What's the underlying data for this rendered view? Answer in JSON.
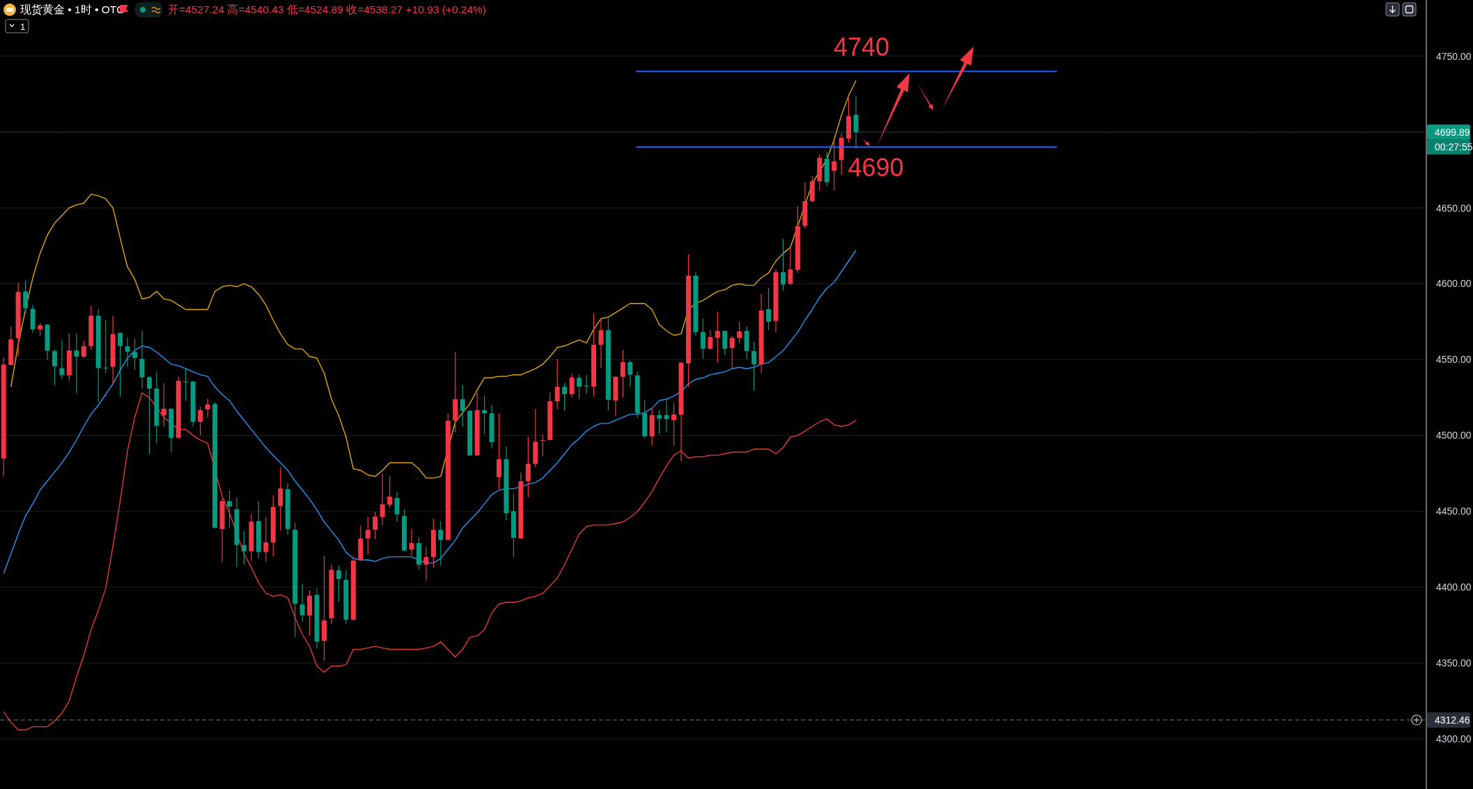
{
  "chart_data": {
    "type": "candlestick",
    "title": "现货黄金 • 1时 • OTC",
    "subtitle": "开=4527.24 高=4540.43 低=4524.89 收=4538.27 +10.93 (+0.24%)",
    "categories": [
      null,
      null,
      null,
      null,
      null,
      null,
      null,
      null,
      null,
      null,
      null,
      null,
      null,
      null,
      null,
      null,
      null,
      null,
      null,
      null,
      null,
      null,
      null,
      null,
      null,
      null,
      null,
      null,
      null,
      null,
      null,
      null,
      null,
      null,
      null,
      null,
      null,
      null,
      null,
      null,
      null,
      null,
      null,
      null,
      null,
      null,
      null,
      null,
      null,
      null,
      null,
      null,
      null,
      null,
      null,
      null,
      null,
      null,
      null,
      null,
      null,
      null,
      null,
      null,
      null,
      null,
      null,
      null,
      null,
      null,
      null,
      null,
      null,
      null,
      null,
      null,
      null,
      null,
      null,
      null,
      null,
      null,
      null,
      null,
      null,
      null,
      null,
      null,
      null,
      null,
      null,
      null,
      null,
      null,
      null,
      null,
      null,
      null,
      null,
      null,
      null,
      null,
      null,
      null,
      null,
      null,
      null,
      null,
      null,
      null,
      null,
      null,
      null,
      null,
      null,
      null,
      null,
      null
    ],
    "ohlc": [
      [
        4484.8,
        4551.4,
        4472.8,
        4546.7
      ],
      [
        4546.5,
        4571.9,
        4546.2,
        4563.3
      ],
      [
        4564.0,
        4600.9,
        4552.3,
        4594.6
      ],
      [
        4594.9,
        4602.3,
        4580.4,
        4583.9
      ],
      [
        4583.5,
        4586.1,
        4567.5,
        4570.0
      ],
      [
        4570.0,
        4574.2,
        4565.8,
        4572.5
      ],
      [
        4573.0,
        4573.3,
        4550.0,
        4555.8
      ],
      [
        4555.6,
        4556.7,
        4533.3,
        4545.6
      ],
      [
        4544.4,
        4563.2,
        4537.4,
        4539.8
      ],
      [
        4539.7,
        4567.2,
        4536.1,
        4556.0
      ],
      [
        4556.0,
        4567.2,
        4527.7,
        4551.9
      ],
      [
        4551.9,
        4562.3,
        4551.1,
        4558.8
      ],
      [
        4559.0,
        4585.6,
        4556.3,
        4578.9
      ],
      [
        4578.9,
        4583.5,
        4522.0,
        4544.4
      ],
      [
        4544.7,
        4576.0,
        4540.9,
        4544.4
      ],
      [
        4545.3,
        4578.9,
        4533.3,
        4566.8
      ],
      [
        4567.5,
        4568.1,
        4525.6,
        4559.0
      ],
      [
        4558.8,
        4564.6,
        4545.3,
        4555.3
      ],
      [
        4555.1,
        4563.7,
        4543.2,
        4551.1
      ],
      [
        4550.5,
        4569.0,
        4530.9,
        4538.3
      ],
      [
        4538.3,
        4539.1,
        4487.6,
        4530.9
      ],
      [
        4530.9,
        4542.1,
        4494.9,
        4506.3
      ],
      [
        4513.2,
        4534.4,
        4505.8,
        4517.6
      ],
      [
        4517.6,
        4518.1,
        4489.1,
        4498.4
      ],
      [
        4498.4,
        4538.8,
        4498.4,
        4536.0
      ],
      [
        4535.6,
        4543.9,
        4522.8,
        4535.1
      ],
      [
        4535.6,
        4536.0,
        4505.8,
        4509.0
      ],
      [
        4509.0,
        4519.0,
        4500.2,
        4516.7
      ],
      [
        4517.2,
        4524.2,
        4511.9,
        4520.4
      ],
      [
        4520.7,
        4522.0,
        4438.8,
        4439.2
      ],
      [
        4438.3,
        4458.4,
        4416.4,
        4456.7
      ],
      [
        4456.7,
        4463.7,
        4439.2,
        4453.2
      ],
      [
        4451.4,
        4459.3,
        4413.2,
        4427.8
      ],
      [
        4427.8,
        4436.9,
        4415.0,
        4423.7
      ],
      [
        4423.7,
        4448.3,
        4417.2,
        4443.2
      ],
      [
        4443.5,
        4456.7,
        4419.0,
        4423.2
      ],
      [
        4423.2,
        4446.2,
        4416.9,
        4429.5
      ],
      [
        4429.5,
        4460.6,
        4420.4,
        4452.8
      ],
      [
        4453.5,
        4479.1,
        4437.4,
        4465.1
      ],
      [
        4464.6,
        4468.6,
        4434.2,
        4438.3
      ],
      [
        4437.9,
        4442.7,
        4367.2,
        4389.2
      ],
      [
        4388.6,
        4402.3,
        4377.4,
        4381.6
      ],
      [
        4381.3,
        4397.9,
        4368.1,
        4394.4
      ],
      [
        4395.0,
        4399.2,
        4359.7,
        4364.1
      ],
      [
        4364.6,
        4420.7,
        4351.5,
        4378.1
      ],
      [
        4379.5,
        4414.9,
        4376.0,
        4411.4
      ],
      [
        4411.1,
        4414.2,
        4390.4,
        4405.5
      ],
      [
        4404.9,
        4411.1,
        4375.7,
        4378.6
      ],
      [
        4378.6,
        4420.2,
        4378.1,
        4417.6
      ],
      [
        4417.8,
        4440.6,
        4417.2,
        4432.1
      ],
      [
        4432.1,
        4446.5,
        4421.6,
        4437.8
      ],
      [
        4437.9,
        4449.7,
        4431.6,
        4446.5
      ],
      [
        4446.2,
        4474.8,
        4440.9,
        4454.6
      ],
      [
        4454.4,
        4472.8,
        4452.3,
        4459.7
      ],
      [
        4458.8,
        4462.8,
        4443.0,
        4448.0
      ],
      [
        4446.9,
        4451.1,
        4423.7,
        4424.1
      ],
      [
        4424.8,
        4438.3,
        4420.7,
        4429.0
      ],
      [
        4429.0,
        4433.0,
        4411.4,
        4414.9
      ],
      [
        4414.9,
        4426.5,
        4404.4,
        4419.9
      ],
      [
        4419.9,
        4445.1,
        4412.8,
        4437.8
      ],
      [
        4437.8,
        4443.5,
        4414.1,
        4431.1
      ],
      [
        4431.1,
        4514.6,
        4430.7,
        4509.7
      ],
      [
        4509.8,
        4554.9,
        4502.0,
        4523.9
      ],
      [
        4523.9,
        4533.3,
        4505.8,
        4516.3
      ],
      [
        4516.3,
        4516.7,
        4486.5,
        4486.9
      ],
      [
        4486.9,
        4528.3,
        4486.5,
        4516.7
      ],
      [
        4516.7,
        4526.3,
        4501.1,
        4514.6
      ],
      [
        4514.6,
        4520.2,
        4491.8,
        4495.6
      ],
      [
        4472.5,
        4514.6,
        4464.6,
        4484.4
      ],
      [
        4484.4,
        4492.7,
        4444.1,
        4448.8
      ],
      [
        4450.0,
        4461.6,
        4419.9,
        4432.5
      ],
      [
        4432.1,
        4475.6,
        4431.8,
        4469.8
      ],
      [
        4469.8,
        4499.1,
        4459.3,
        4481.3
      ],
      [
        4481.3,
        4517.6,
        4479.1,
        4495.8
      ],
      [
        4496.5,
        4500.5,
        4486.5,
        4497.0
      ],
      [
        4497.0,
        4528.3,
        4497.0,
        4522.5
      ],
      [
        4522.5,
        4550.5,
        4517.2,
        4532.1
      ],
      [
        4532.1,
        4534.7,
        4516.3,
        4527.2
      ],
      [
        4527.24,
        4540.43,
        4524.89,
        4538.27
      ],
      [
        4538.0,
        4540.3,
        4524.0,
        4532.2
      ],
      [
        4532.8,
        4539.9,
        4527.6,
        4532.4
      ],
      [
        4532.2,
        4580.4,
        4525.8,
        4559.8
      ],
      [
        4559.8,
        4577.3,
        4544.5,
        4569.4
      ],
      [
        4569.4,
        4578.6,
        4516.6,
        4523.5
      ],
      [
        4523.1,
        4539.1,
        4512.7,
        4538.7
      ],
      [
        4538.7,
        4556.4,
        4525.0,
        4548.3
      ],
      [
        4548.3,
        4549.5,
        4532.2,
        4540.0
      ],
      [
        4539.6,
        4542.3,
        4511.7,
        4514.8
      ],
      [
        4514.8,
        4523.1,
        4498.6,
        4499.4
      ],
      [
        4499.4,
        4518.2,
        4493.4,
        4513.4
      ],
      [
        4513.4,
        4516.6,
        4501.0,
        4511.1
      ],
      [
        4513.4,
        4524.0,
        4502.1,
        4510.8
      ],
      [
        4510.2,
        4521.2,
        4493.0,
        4513.9
      ],
      [
        4513.6,
        4548.3,
        4483.0,
        4548.0
      ],
      [
        4547.5,
        4619.4,
        4532.2,
        4605.3
      ],
      [
        4605.3,
        4607.6,
        4565.9,
        4568.2
      ],
      [
        4568.2,
        4577.0,
        4550.6,
        4557.2
      ],
      [
        4557.2,
        4569.4,
        4556.9,
        4564.8
      ],
      [
        4564.3,
        4581.6,
        4548.0,
        4568.9
      ],
      [
        4568.9,
        4569.2,
        4553.3,
        4557.2
      ],
      [
        4557.6,
        4565.6,
        4544.2,
        4564.3
      ],
      [
        4564.3,
        4575.2,
        4560.7,
        4568.6
      ],
      [
        4568.9,
        4572.0,
        4550.3,
        4555.6
      ],
      [
        4555.6,
        4561.7,
        4529.6,
        4546.9
      ],
      [
        4546.9,
        4593.4,
        4541.1,
        4582.4
      ],
      [
        4583.2,
        4597.4,
        4569.4,
        4575.0
      ],
      [
        4575.5,
        4609.6,
        4568.2,
        4607.6
      ],
      [
        4607.6,
        4629.8,
        4595.4,
        4599.5
      ],
      [
        4600.0,
        4624.4,
        4599.2,
        4609.5
      ],
      [
        4609.1,
        4651.2,
        4607.0,
        4638.1
      ],
      [
        4638.1,
        4667.0,
        4636.3,
        4654.4
      ],
      [
        4654.4,
        4671.0,
        4653.9,
        4667.5
      ],
      [
        4667.5,
        4685.1,
        4661.4,
        4683.0
      ],
      [
        4682.4,
        4686.8,
        4664.5,
        4667.0
      ],
      [
        4674.5,
        4694.7,
        4661.4,
        4680.7
      ],
      [
        4681.6,
        4699.1,
        4671.9,
        4696.1
      ],
      [
        4695.6,
        4722.3,
        4693.0,
        4710.5
      ],
      [
        4711.4,
        4723.7,
        4689.5,
        4699.89
      ]
    ],
    "series": [
      {
        "type": "line",
        "color": "#e0a800",
        "values": [
          null,
          4532,
          4560,
          4583,
          4604,
          4620,
          4632,
          4640,
          4645,
          4650,
          4652,
          4653,
          4659,
          4658,
          4656,
          4650,
          4630,
          4611,
          4603,
          4590,
          4591,
          4595,
          4590,
          4589,
          4586,
          4583,
          4583,
          4583,
          4583,
          4595,
          4598,
          4599,
          4598,
          4600,
          4598,
          4593,
          4586,
          4576,
          4567,
          4560,
          4557,
          4557,
          4552,
          4551,
          4541,
          4524,
          4513,
          4499,
          4478,
          4477,
          4474,
          4473,
          4477,
          4482,
          4482,
          4482,
          4482,
          4478,
          4472,
          4472,
          4473,
          null,
          4509,
          null,
          4521,
          4530,
          4538,
          4538,
          4539,
          4539,
          4540,
          4540,
          4542,
          4544,
          4547,
          4552,
          4558,
          4559,
          4561,
          4563,
          4561,
          4570,
          4577,
          4578,
          4581,
          4584,
          4587,
          4587,
          4587,
          4583,
          4573,
          4569,
          4566,
          4567,
          4583,
          4587,
          4589,
          4592,
          4595,
          4596,
          4599,
          4600,
          4599,
          4599,
          4604,
          4607,
          4615,
          4620,
          4624,
          null,
          null,
          4666,
          null,
          4682,
          4695,
          4711,
          4724,
          4734
        ]
      },
      {
        "type": "line",
        "color": "#2196f3",
        "values": [
          4409,
          4422,
          4435,
          4447,
          4455,
          4464,
          4470,
          4476,
          4482,
          4489,
          4497,
          4506,
          4514,
          4520,
          4527,
          4534,
          4543,
          4551,
          4556,
          4559,
          4558,
          4555,
          4551,
          4547,
          4546,
          4544,
          4542,
          4540,
          4539,
          4532,
          4527,
          4523,
          4516,
          4510,
          4504,
          4498,
          4492,
          4487,
          4482,
          4477,
          4470,
          4464,
          4458,
          4451,
          4443,
          4437,
          4431,
          4423,
          4419,
          4418,
          4418,
          4417,
          4419,
          4420,
          4420,
          4420,
          4420,
          4418,
          4416,
          4416,
          4419,
          4425,
          4431,
          4439,
          4444,
          4449,
          4455,
          4461,
          4464,
          4465,
          4465,
          4466,
          4468,
          4469,
          4472,
          4477,
          4482,
          4488,
          4494,
          4498,
          4503,
          4506,
          4508,
          4508,
          4510,
          4512,
          4514,
          4514,
          4515,
          4518,
          4523,
          4524,
          4526,
          4529,
          4534,
          4537,
          4538,
          4540,
          4541,
          4542,
          4544,
          4545,
          4544,
          4545,
          4547,
          4548,
          4552,
          4556,
          4562,
          4568,
          4576,
          4583,
          4591,
          4597,
          4601,
          4608,
          4615,
          4622
        ]
      },
      {
        "type": "line",
        "color": "#e53935",
        "values": [
          4318,
          4311,
          4306,
          4306,
          4308,
          4308,
          4308,
          4312,
          4317,
          4325,
          4341,
          4355,
          4372,
          4385,
          4399,
          4427,
          4457,
          4490,
          4512,
          4528,
          4525,
          null,
          4512,
          null,
          4504,
          4504,
          4500,
          4497,
          4495,
          null,
          4460,
          4449,
          null,
          4422,
          4413,
          4403,
          4396,
          4394,
          4395,
          4393,
          4380,
          4369,
          4361,
          4348,
          4344,
          4348,
          4348,
          4349,
          4359,
          4359,
          4360,
          4361,
          4360,
          4359,
          4359,
          4359,
          4359,
          4359,
          4360,
          4361,
          4364,
          4359,
          4354,
          4359,
          4367,
          4368,
          4372,
          4383,
          4389,
          4390,
          4390,
          4391,
          4393,
          4394,
          4396,
          4401,
          4406,
          4415,
          4425,
          4435,
          4440,
          4441,
          4441,
          4441,
          4442,
          4443,
          4446,
          4450,
          4456,
          4463,
          4472,
          4480,
          4487,
          4490,
          4485,
          4486,
          4486,
          4487,
          4487,
          4488,
          4489,
          4489,
          4489,
          4491,
          4491,
          4491,
          4488,
          4492,
          4499,
          4500,
          4503,
          4506,
          4509,
          4511,
          4507,
          4506,
          4507,
          4510
        ]
      }
    ],
    "ylim": [
      4267,
      4787
    ],
    "yticks": [
      {
        "value": 4300,
        "label": "4300.00"
      },
      {
        "value": 4350,
        "label": "4350.00"
      },
      {
        "value": 4400,
        "label": "4400.00"
      },
      {
        "value": 4450,
        "label": "4450.00"
      },
      {
        "value": 4500,
        "label": "4500.00"
      },
      {
        "value": 4550,
        "label": "4550.00"
      },
      {
        "value": 4600,
        "label": "4600.00"
      },
      {
        "value": 4650,
        "label": "4650.00"
      },
      {
        "value": 4700,
        "label": null
      },
      {
        "value": 4750,
        "label": "4750.00"
      }
    ],
    "grid": "y",
    "tick_labels": "y",
    "ref_lines": [
      {
        "axis": "y",
        "value": 4740,
        "label": "4740",
        "color": "#2962ff",
        "line_style": "solid"
      },
      {
        "axis": "y",
        "value": 4690,
        "label": "4690",
        "color": "#2962ff",
        "line_style": "solid"
      },
      {
        "axis": "y",
        "value": 4699.89,
        "label": "4699.89",
        "color": "#089981",
        "line_style": "dotted"
      },
      {
        "axis": "y",
        "value": 4312.46,
        "label": "4312.46",
        "color": "#787b86",
        "line_style": "dashed"
      }
    ],
    "annotations": [
      "1",
      "00:27:55"
    ]
  }
}
